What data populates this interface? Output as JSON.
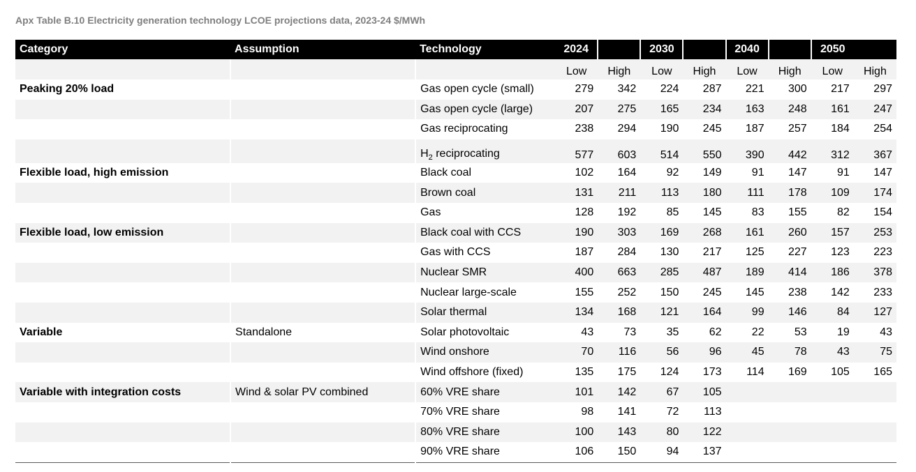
{
  "title": "Apx Table B.10 Electricity generation technology LCOE projections data, 2023-24 $/MWh",
  "headers": {
    "category": "Category",
    "assumption": "Assumption",
    "technology": "Technology",
    "years": [
      "2024",
      "2030",
      "2040",
      "2050"
    ],
    "low": "Low",
    "high": "High"
  },
  "rows": [
    {
      "category": "Peaking 20% load",
      "assumption": "",
      "technology": "Gas open cycle (small)",
      "values": [
        "279",
        "342",
        "224",
        "287",
        "221",
        "300",
        "217",
        "297"
      ]
    },
    {
      "category": "",
      "assumption": "",
      "technology": "Gas open cycle (large)",
      "values": [
        "207",
        "275",
        "165",
        "234",
        "163",
        "248",
        "161",
        "247"
      ]
    },
    {
      "category": "",
      "assumption": "",
      "technology": "Gas reciprocating",
      "values": [
        "238",
        "294",
        "190",
        "245",
        "187",
        "257",
        "184",
        "254"
      ]
    },
    {
      "category": "",
      "assumption": "",
      "technology": "H",
      "technology_sub": "2",
      "technology_rest": " reciprocating",
      "values": [
        "577",
        "603",
        "514",
        "550",
        "390",
        "442",
        "312",
        "367"
      ]
    },
    {
      "category": "Flexible load, high emission",
      "assumption": "",
      "technology": "Black coal",
      "values": [
        "102",
        "164",
        "92",
        "149",
        "91",
        "147",
        "91",
        "147"
      ]
    },
    {
      "category": "",
      "assumption": "",
      "technology": "Brown coal",
      "values": [
        "131",
        "211",
        "113",
        "180",
        "111",
        "178",
        "109",
        "174"
      ]
    },
    {
      "category": "",
      "assumption": "",
      "technology": "Gas",
      "values": [
        "128",
        "192",
        "85",
        "145",
        "83",
        "155",
        "82",
        "154"
      ]
    },
    {
      "category": "Flexible load, low emission",
      "assumption": "",
      "technology": "Black coal with CCS",
      "values": [
        "190",
        "303",
        "169",
        "268",
        "161",
        "260",
        "157",
        "253"
      ]
    },
    {
      "category": "",
      "assumption": "",
      "technology": "Gas with CCS",
      "values": [
        "187",
        "284",
        "130",
        "217",
        "125",
        "227",
        "123",
        "223"
      ]
    },
    {
      "category": "",
      "assumption": "",
      "technology": "Nuclear SMR",
      "values": [
        "400",
        "663",
        "285",
        "487",
        "189",
        "414",
        "186",
        "378"
      ]
    },
    {
      "category": "",
      "assumption": "",
      "technology": "Nuclear large-scale",
      "values": [
        "155",
        "252",
        "150",
        "245",
        "145",
        "238",
        "142",
        "233"
      ]
    },
    {
      "category": "",
      "assumption": "",
      "technology": "Solar thermal",
      "values": [
        "134",
        "168",
        "121",
        "164",
        "99",
        "146",
        "84",
        "127"
      ]
    },
    {
      "category": "Variable",
      "assumption": "Standalone",
      "technology": "Solar photovoltaic",
      "values": [
        "43",
        "73",
        "35",
        "62",
        "22",
        "53",
        "19",
        "43"
      ]
    },
    {
      "category": "",
      "assumption": "",
      "technology": "Wind onshore",
      "values": [
        "70",
        "116",
        "56",
        "96",
        "45",
        "78",
        "43",
        "75"
      ]
    },
    {
      "category": "",
      "assumption": "",
      "technology": "Wind offshore (fixed)",
      "values": [
        "135",
        "175",
        "124",
        "173",
        "114",
        "169",
        "105",
        "165"
      ]
    },
    {
      "category": "Variable with integration costs",
      "assumption": "Wind & solar PV combined",
      "technology": "60% VRE share",
      "values": [
        "101",
        "142",
        "67",
        "105",
        "",
        "",
        "",
        ""
      ]
    },
    {
      "category": "",
      "assumption": "",
      "technology": "70% VRE share",
      "values": [
        "98",
        "141",
        "72",
        "113",
        "",
        "",
        "",
        ""
      ]
    },
    {
      "category": "",
      "assumption": "",
      "technology": "80% VRE share",
      "values": [
        "100",
        "143",
        "80",
        "122",
        "",
        "",
        "",
        ""
      ]
    },
    {
      "category": "",
      "assumption": "",
      "technology": "90% VRE share",
      "values": [
        "106",
        "150",
        "94",
        "137",
        "",
        "",
        "",
        ""
      ]
    }
  ]
}
